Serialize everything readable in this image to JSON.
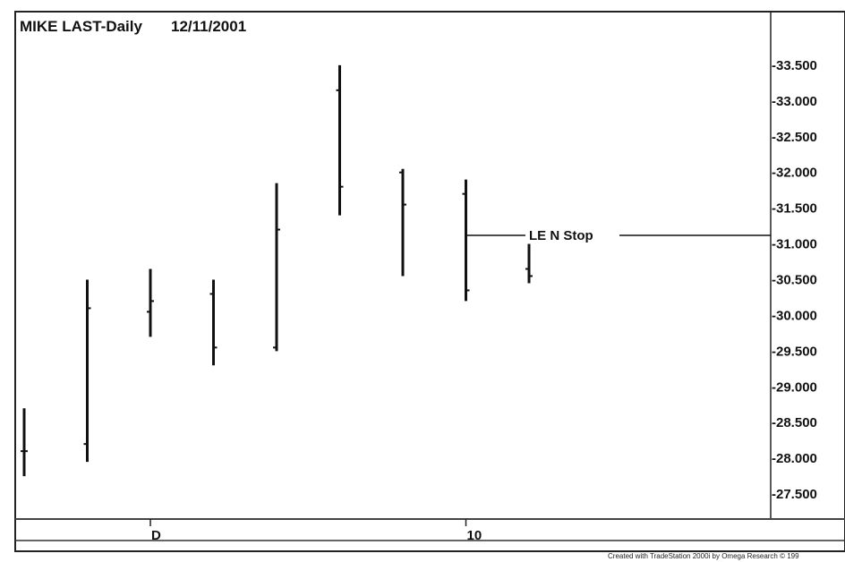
{
  "chart_data": {
    "type": "bar",
    "style": "OHLC price bars",
    "title": "MIKE LAST-Daily",
    "date": "12/11/2001",
    "y_ticks": [
      27.5,
      28.0,
      28.5,
      29.0,
      29.5,
      30.0,
      30.5,
      31.0,
      31.5,
      32.0,
      32.5,
      33.0,
      33.5
    ],
    "y_tick_labels": [
      "-27.500",
      "-28.000",
      "-28.500",
      "-29.000",
      "-29.500",
      "-30.000",
      "-30.500",
      "-31.000",
      "-31.500",
      "-32.000",
      "-32.500",
      "-33.000",
      "-33.500"
    ],
    "ylim": [
      27.15,
      34.25
    ],
    "x_ticks": [
      {
        "bar_index": 2,
        "label": "D"
      },
      {
        "bar_index": 7,
        "label": "10"
      }
    ],
    "bars": [
      {
        "open": 28.1,
        "high": 28.7,
        "low": 27.75,
        "close": 28.1
      },
      {
        "open": 28.2,
        "high": 30.5,
        "low": 27.95,
        "close": 30.1
      },
      {
        "open": 30.05,
        "high": 30.65,
        "low": 29.7,
        "close": 30.2
      },
      {
        "open": 30.3,
        "high": 30.5,
        "low": 29.3,
        "close": 29.55
      },
      {
        "open": 29.55,
        "high": 31.85,
        "low": 29.5,
        "close": 31.2
      },
      {
        "open": 33.15,
        "high": 33.5,
        "low": 31.4,
        "close": 31.8
      },
      {
        "open": 32.0,
        "high": 32.05,
        "low": 30.55,
        "close": 31.55
      },
      {
        "open": 31.7,
        "high": 31.9,
        "low": 30.2,
        "close": 30.35
      },
      {
        "open": 30.65,
        "high": 31.0,
        "low": 30.45,
        "close": 30.55
      }
    ],
    "annotations": [
      {
        "type": "hline",
        "value": 31.12,
        "start_bar_index": 7,
        "label": "LE N Stop"
      }
    ],
    "footer": "Created with TradeStation 2000i by Omega Research © 199"
  }
}
